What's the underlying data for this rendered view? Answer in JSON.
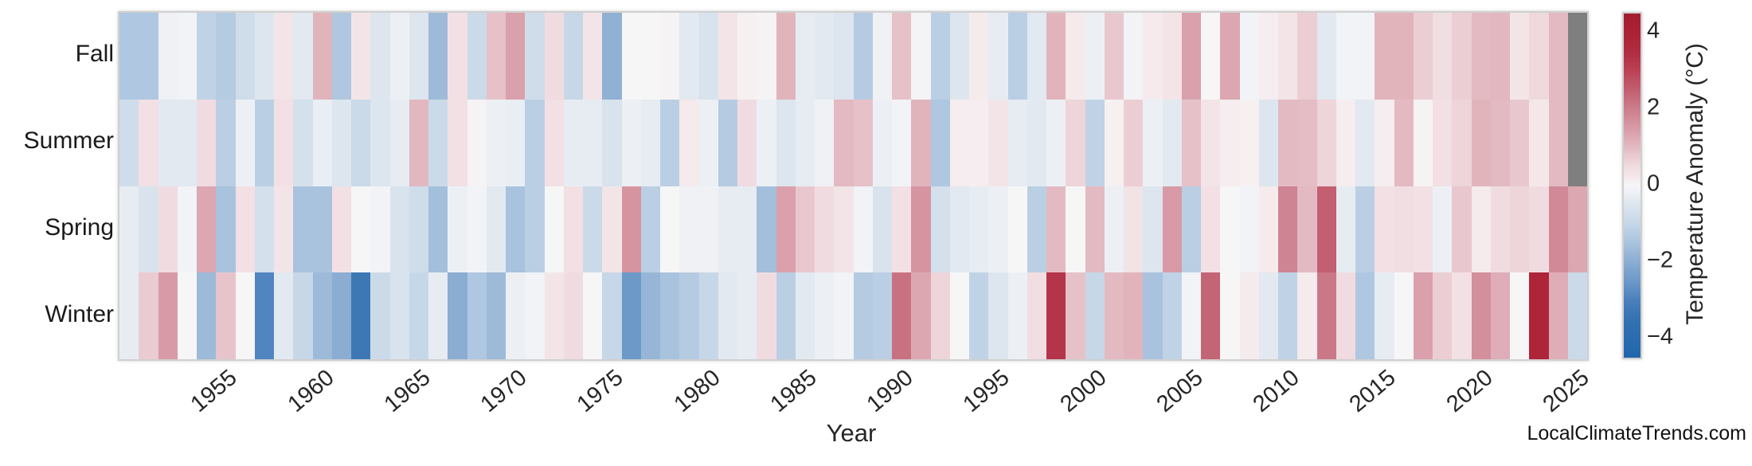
{
  "watermark": "LocalClimateTrends.com",
  "chart_data": {
    "type": "heatmap",
    "title": "",
    "xlabel": "Year",
    "x_start": 1950,
    "x_end": 2025,
    "x_tick_years": [
      1955,
      1960,
      1965,
      1970,
      1975,
      1980,
      1985,
      1990,
      1995,
      2000,
      2005,
      2010,
      2015,
      2020,
      2025
    ],
    "rows": [
      "Fall",
      "Summer",
      "Spring",
      "Winter"
    ],
    "series": [
      {
        "name": "Fall",
        "values": [
          -1.4,
          -1.4,
          -0.15,
          -0.1,
          -1.1,
          -1.3,
          -0.8,
          -0.5,
          0.3,
          -0.4,
          1.1,
          -1.4,
          0.3,
          -0.5,
          -0.2,
          -0.5,
          -1.7,
          0.4,
          -0.9,
          0.9,
          1.4,
          -0.8,
          0.5,
          -1.0,
          0.3,
          -1.9,
          0.0,
          0.0,
          0.05,
          -0.4,
          -0.6,
          0.3,
          0.1,
          0.05,
          1.1,
          -0.3,
          -0.4,
          -0.5,
          -1.3,
          -0.15,
          0.9,
          -0.05,
          -1.2,
          -0.5,
          0.2,
          -0.3,
          -1.2,
          -0.4,
          1.1,
          0.2,
          -0.2,
          0.8,
          -0.1,
          0.2,
          0.3,
          1.4,
          0.0,
          1.3,
          -0.1,
          0.15,
          0.3,
          0.7,
          -0.4,
          -0.1,
          -0.1,
          1.1,
          1.1,
          0.7,
          0.45,
          0.7,
          1.0,
          1.05,
          0.3,
          0.55,
          1.0,
          null
        ]
      },
      {
        "name": "Summer",
        "values": [
          -0.8,
          0.4,
          -0.4,
          -0.4,
          0.5,
          -1.2,
          -0.2,
          -1.2,
          0.4,
          -0.7,
          -0.25,
          -0.5,
          -0.9,
          -0.5,
          -0.3,
          1.05,
          -0.9,
          0.4,
          0.05,
          -0.2,
          -0.25,
          -1.2,
          0.4,
          -0.3,
          -0.3,
          -0.6,
          -0.2,
          -0.3,
          -1.2,
          0.2,
          -0.2,
          -1.3,
          0.5,
          -0.2,
          -0.5,
          -0.3,
          -0.15,
          1.0,
          0.9,
          -0.2,
          -0.1,
          1.1,
          -1.4,
          0.15,
          0.15,
          0.3,
          -0.3,
          -0.4,
          -0.2,
          0.6,
          -1.1,
          0.1,
          0.7,
          -0.2,
          -0.4,
          0.9,
          0.3,
          0.15,
          0.1,
          -0.5,
          1.0,
          0.95,
          0.6,
          0.15,
          -0.4,
          0.15,
          1.0,
          0.05,
          0.4,
          0.6,
          1.1,
          1.0,
          0.8,
          0.25,
          1.0,
          null
        ]
      },
      {
        "name": "Spring",
        "values": [
          -0.3,
          -0.6,
          0.5,
          -0.1,
          1.3,
          -1.5,
          0.4,
          -0.7,
          0.3,
          -1.5,
          -1.5,
          0.4,
          0.0,
          -0.1,
          -0.6,
          -0.8,
          -1.6,
          -0.2,
          -0.1,
          -0.4,
          -1.5,
          -1.2,
          0.0,
          0.4,
          -0.9,
          0.3,
          1.6,
          -1.2,
          0.0,
          -0.15,
          -0.15,
          -0.3,
          -0.3,
          -1.6,
          1.4,
          0.8,
          0.5,
          0.3,
          -0.1,
          -0.6,
          0.4,
          1.6,
          -0.7,
          -0.4,
          -0.3,
          -0.2,
          0.0,
          -1.2,
          1.0,
          0.0,
          1.0,
          -0.2,
          0.35,
          -0.5,
          1.5,
          -1.2,
          0.4,
          0.0,
          -0.1,
          0.2,
          1.9,
          1.0,
          2.5,
          -0.3,
          -1.2,
          0.4,
          0.45,
          0.4,
          -0.2,
          0.8,
          0.2,
          0.5,
          0.6,
          0.5,
          1.8,
          1.3
        ]
      },
      {
        "name": "Winter",
        "values": [
          -0.3,
          0.75,
          1.5,
          0.0,
          -1.7,
          0.85,
          0.0,
          -2.9,
          -0.4,
          -1.0,
          -1.7,
          -2.0,
          -3.3,
          -0.9,
          -0.6,
          -1.0,
          -0.3,
          -2.0,
          -1.4,
          -1.7,
          -0.2,
          -0.1,
          0.3,
          0.5,
          0.0,
          -1.0,
          -2.5,
          -1.8,
          -1.5,
          -1.3,
          -1.0,
          -0.4,
          -0.3,
          0.5,
          -1.2,
          -0.4,
          -0.2,
          -0.1,
          -1.3,
          -1.2,
          2.2,
          1.3,
          0.6,
          0.0,
          -1.1,
          -0.5,
          -0.2,
          0.45,
          3.3,
          0.9,
          -1.0,
          1.0,
          1.1,
          -1.5,
          -1.1,
          -0.1,
          2.4,
          0.0,
          0.2,
          -0.4,
          -1.1,
          0.2,
          2.1,
          0.5,
          -1.4,
          -0.3,
          0.0,
          1.4,
          0.7,
          0.4,
          1.7,
          1.2,
          0.0,
          3.8,
          1.2,
          -0.9
        ]
      }
    ],
    "colorbar": {
      "label": "Temperature Anomaly (°C)",
      "tick_values": [
        4,
        2,
        0,
        -2,
        -4
      ],
      "tick_labels": [
        "4",
        "2",
        "0",
        "−2",
        "−4"
      ],
      "vmin": -4.5,
      "vmax": 4.5,
      "position": "right"
    },
    "missing_color": "#7f7f7f",
    "colormap_anchors": [
      [
        -4.5,
        "#2166ac"
      ],
      [
        -3.5,
        "#3472b1"
      ],
      [
        -3.0,
        "#4a80bc"
      ],
      [
        -2.5,
        "#6d99c9"
      ],
      [
        -2.0,
        "#8badd2"
      ],
      [
        -1.5,
        "#a9c3de"
      ],
      [
        -1.0,
        "#c6d7e8"
      ],
      [
        -0.5,
        "#dde6ee"
      ],
      [
        -0.25,
        "#e9eef4"
      ],
      [
        0.0,
        "#f7f6f7"
      ],
      [
        0.25,
        "#f4e7e9"
      ],
      [
        0.5,
        "#f0dce0"
      ],
      [
        1.0,
        "#e3bac2"
      ],
      [
        1.5,
        "#d89aa6"
      ],
      [
        2.0,
        "#cc7e8d"
      ],
      [
        2.5,
        "#c25f70"
      ],
      [
        3.0,
        "#bb4155"
      ],
      [
        3.5,
        "#b02c41"
      ],
      [
        4.0,
        "#ac2134"
      ],
      [
        4.5,
        "#a21c2f"
      ]
    ],
    "grid": false
  }
}
